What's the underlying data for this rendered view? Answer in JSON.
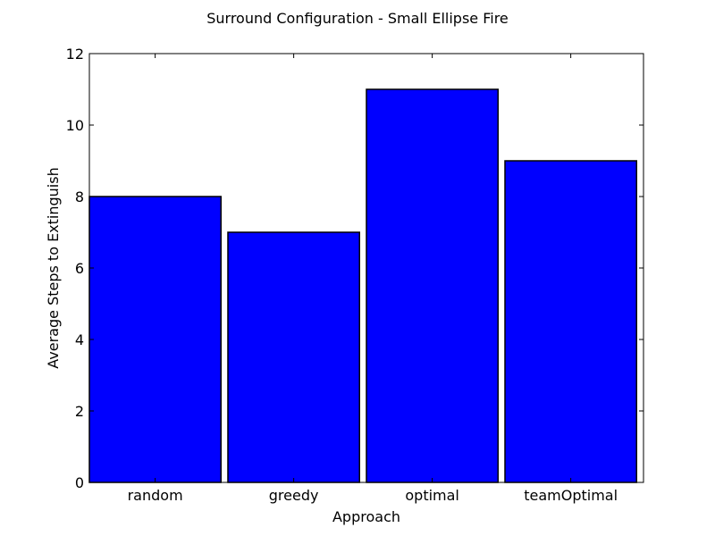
{
  "chart_data": {
    "type": "bar",
    "title": "Surround Configuration - Small Ellipse Fire",
    "xlabel": "Approach",
    "ylabel": "Average Steps to Extinguish",
    "categories": [
      "random",
      "greedy",
      "optimal",
      "teamOptimal"
    ],
    "values": [
      8,
      7,
      11,
      9
    ],
    "ylim": [
      0,
      12
    ],
    "yticks": [
      0,
      2,
      4,
      6,
      8,
      10,
      12
    ],
    "grid": false,
    "bar_color": "#0000ff"
  }
}
